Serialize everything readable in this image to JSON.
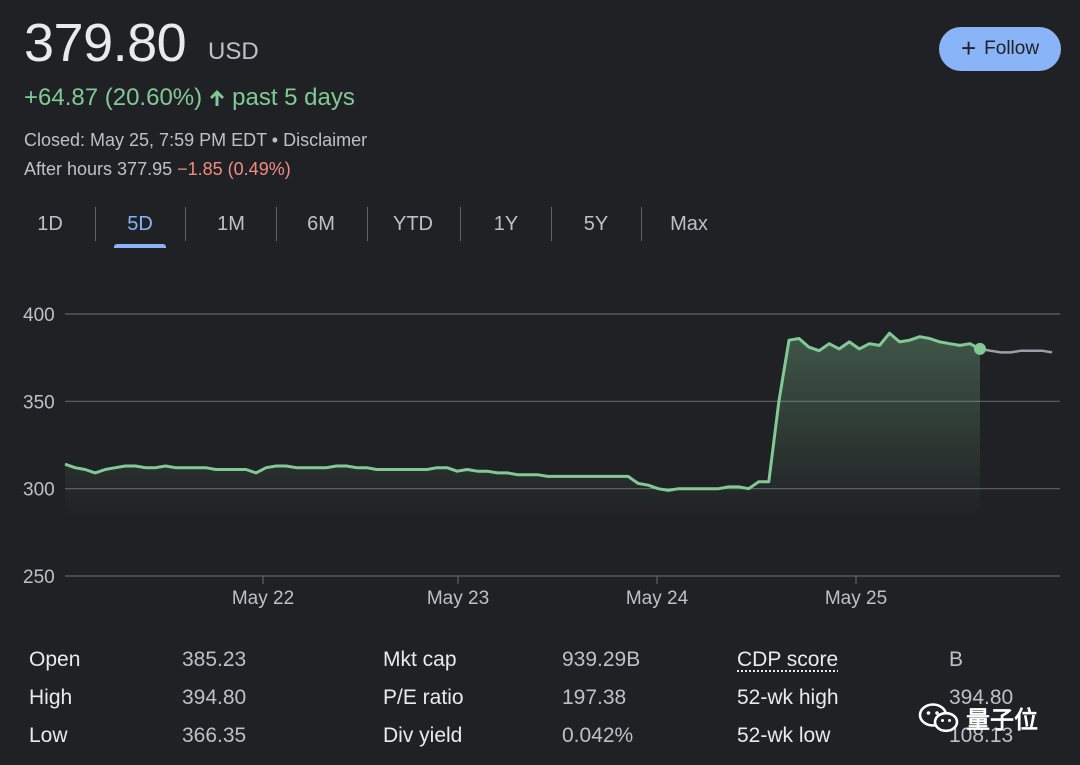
{
  "quote": {
    "price": "379.80",
    "currency": "USD",
    "change": "+64.87 (20.60%)",
    "period": "past 5 days",
    "closed": "Closed: May 25, 7:59 PM EDT • Disclaimer",
    "after_hours_label": "After hours 377.95",
    "after_hours_change": "−1.85 (0.49%)"
  },
  "follow_button": {
    "label": "Follow"
  },
  "tabs": [
    "1D",
    "5D",
    "1M",
    "6M",
    "YTD",
    "1Y",
    "5Y",
    "Max"
  ],
  "active_tab": "5D",
  "colors": {
    "positive": "#81c995",
    "negative": "#f28b82",
    "accent": "#8ab4f8",
    "after_hours_line": "#9aa0a6"
  },
  "chart_data": {
    "type": "line",
    "y_ticks": [
      400,
      350,
      300,
      250
    ],
    "ylim": [
      250,
      400
    ],
    "x_tick_labels": [
      "May 22",
      "May 23",
      "May 24",
      "May 25"
    ],
    "grid": true,
    "series": [
      {
        "values": [
          314,
          312,
          311,
          309,
          311,
          312,
          313,
          313,
          312,
          312,
          313,
          312,
          312,
          312,
          312,
          311,
          311,
          311,
          311,
          309,
          312,
          313,
          313,
          312,
          312,
          312,
          312,
          313,
          313,
          312,
          312,
          311,
          311,
          311,
          311,
          311,
          311,
          312,
          312,
          310,
          311,
          310,
          310,
          309,
          309,
          308,
          308,
          308,
          307,
          307,
          307,
          307,
          307,
          307,
          307,
          307,
          307,
          303,
          302,
          300,
          299,
          300,
          300,
          300,
          300,
          300,
          301,
          301,
          300,
          304,
          304,
          350,
          385,
          386,
          381,
          379,
          383,
          380,
          384,
          380,
          383,
          382,
          389,
          384,
          385,
          387,
          386,
          384,
          383,
          382,
          383,
          380
        ]
      },
      {
        "values": [
          380,
          379,
          378,
          378,
          379,
          379,
          379,
          378
        ]
      }
    ]
  },
  "stats": [
    {
      "label": "Open",
      "value": "385.23"
    },
    {
      "label": "High",
      "value": "394.80"
    },
    {
      "label": "Low",
      "value": "366.35"
    },
    {
      "label": "Mkt cap",
      "value": "939.29B"
    },
    {
      "label": "P/E ratio",
      "value": "197.38"
    },
    {
      "label": "Div yield",
      "value": "0.042%"
    },
    {
      "label": "CDP score",
      "value": "B"
    },
    {
      "label": "52-wk high",
      "value": "394.80"
    },
    {
      "label": "52-wk low",
      "value": "108.13"
    }
  ],
  "watermark": {
    "text": "量子位"
  }
}
